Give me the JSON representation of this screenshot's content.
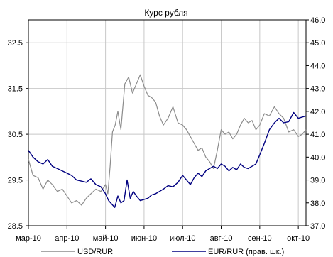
{
  "chart_data": {
    "type": "line",
    "title": "Курс рубля",
    "x_labels": [
      "мар-10",
      "апр-10",
      "май-10",
      "июн-10",
      "июл-10",
      "авг-10",
      "сен-10",
      "окт-10"
    ],
    "y_left": {
      "min": 28.5,
      "max": 33.0,
      "ticks": [
        "28.5",
        "29.5",
        "30.5",
        "31.5",
        "32.5"
      ]
    },
    "y_right": {
      "min": 37.0,
      "max": 46.0,
      "ticks": [
        "37.0",
        "38.0",
        "39.0",
        "40.0",
        "41.0",
        "42.0",
        "43.0",
        "44.0",
        "45.0",
        "46.0"
      ]
    },
    "grid": true,
    "legend_position": "bottom",
    "series": [
      {
        "name": "USD/RUR",
        "axis": "left",
        "color": "#8c8c8c",
        "x": [
          0,
          0.12,
          0.25,
          0.38,
          0.5,
          0.62,
          0.75,
          0.88,
          1.0,
          1.12,
          1.25,
          1.38,
          1.5,
          1.62,
          1.75,
          1.88,
          2.0,
          2.06,
          2.12,
          2.18,
          2.25,
          2.32,
          2.4,
          2.5,
          2.6,
          2.7,
          2.8,
          2.9,
          3.0,
          3.1,
          3.2,
          3.3,
          3.4,
          3.5,
          3.62,
          3.75,
          3.88,
          4.0,
          4.1,
          4.2,
          4.3,
          4.4,
          4.5,
          4.6,
          4.7,
          4.8,
          4.9,
          5.0,
          5.1,
          5.2,
          5.3,
          5.4,
          5.5,
          5.6,
          5.7,
          5.8,
          5.9,
          6.0,
          6.12,
          6.25,
          6.38,
          6.5,
          6.62,
          6.75,
          6.88,
          7.0,
          7.1,
          7.2
        ],
        "values": [
          29.95,
          29.6,
          29.55,
          29.3,
          29.5,
          29.4,
          29.25,
          29.3,
          29.15,
          29.0,
          29.05,
          28.95,
          29.1,
          29.2,
          29.3,
          29.25,
          29.4,
          29.2,
          29.8,
          30.55,
          30.7,
          31.0,
          30.6,
          31.6,
          31.75,
          31.4,
          31.6,
          31.8,
          31.55,
          31.35,
          31.3,
          31.2,
          30.9,
          30.7,
          30.85,
          31.1,
          30.75,
          30.7,
          30.6,
          30.45,
          30.3,
          30.15,
          30.2,
          30.0,
          29.9,
          29.75,
          30.15,
          30.6,
          30.5,
          30.55,
          30.4,
          30.5,
          30.7,
          30.85,
          30.75,
          30.8,
          30.6,
          30.7,
          30.95,
          30.9,
          31.1,
          30.95,
          30.85,
          30.55,
          30.6,
          30.45,
          30.5,
          30.6
        ]
      },
      {
        "name": "EUR/RUR (прав. шк.)",
        "axis": "right",
        "color": "#000080",
        "x": [
          0,
          0.12,
          0.25,
          0.38,
          0.5,
          0.62,
          0.75,
          0.88,
          1.0,
          1.12,
          1.25,
          1.38,
          1.5,
          1.62,
          1.75,
          1.88,
          2.0,
          2.08,
          2.16,
          2.24,
          2.32,
          2.4,
          2.48,
          2.56,
          2.64,
          2.72,
          2.8,
          2.9,
          3.0,
          3.1,
          3.2,
          3.3,
          3.4,
          3.5,
          3.62,
          3.75,
          3.88,
          4.0,
          4.1,
          4.2,
          4.3,
          4.4,
          4.5,
          4.6,
          4.7,
          4.8,
          4.9,
          5.0,
          5.1,
          5.2,
          5.3,
          5.4,
          5.5,
          5.6,
          5.7,
          5.8,
          5.9,
          6.0,
          6.12,
          6.25,
          6.38,
          6.5,
          6.62,
          6.75,
          6.88,
          7.0,
          7.1,
          7.2
        ],
        "values": [
          40.3,
          40.0,
          39.8,
          39.7,
          39.9,
          39.6,
          39.5,
          39.4,
          39.3,
          39.2,
          39.0,
          38.95,
          38.9,
          39.05,
          38.8,
          38.7,
          38.4,
          38.1,
          37.95,
          37.8,
          38.3,
          38.0,
          38.1,
          39.0,
          38.2,
          38.5,
          38.3,
          38.1,
          38.15,
          38.2,
          38.35,
          38.4,
          38.5,
          38.6,
          38.75,
          38.7,
          38.9,
          39.2,
          39.0,
          38.8,
          39.1,
          39.3,
          39.15,
          39.4,
          39.5,
          39.6,
          39.5,
          39.7,
          39.6,
          39.4,
          39.55,
          39.45,
          39.7,
          39.55,
          39.5,
          39.6,
          39.7,
          40.1,
          40.6,
          41.2,
          41.5,
          41.7,
          41.5,
          41.55,
          41.95,
          41.7,
          41.75,
          41.8
        ]
      }
    ]
  }
}
